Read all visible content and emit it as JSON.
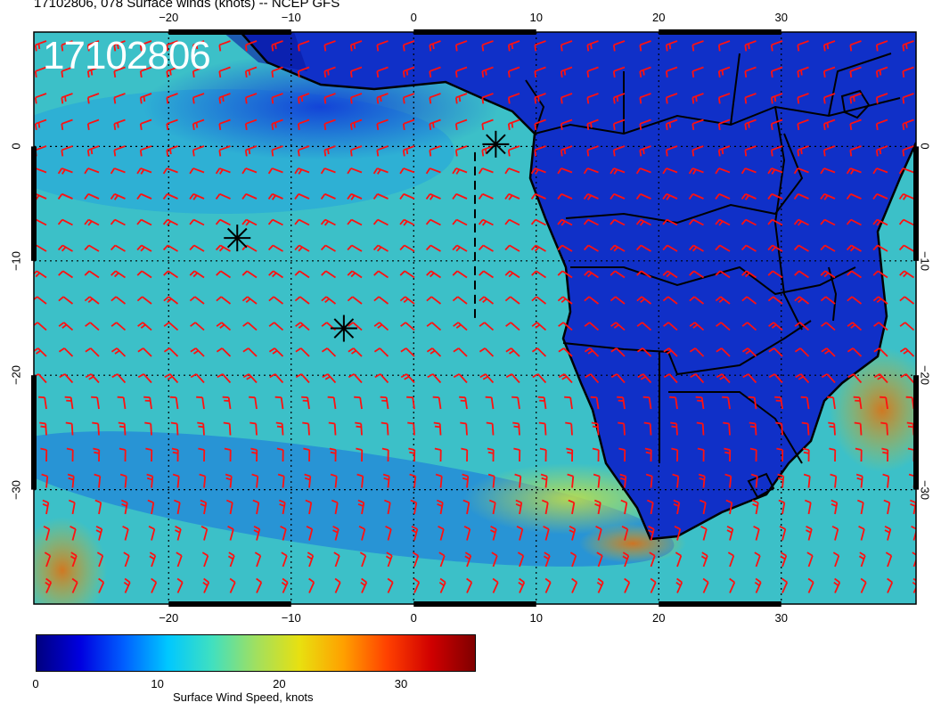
{
  "title": "17102806, 078 Surface winds (knots) -- NCEP GFS",
  "stamp": "17102806",
  "map": {
    "lon_range": [
      -31,
      41
    ],
    "lat_range": [
      10,
      -40
    ],
    "grid_lons": [
      -20,
      -10,
      0,
      10,
      20,
      30
    ],
    "grid_lats": [
      0,
      -10,
      -20,
      -30
    ],
    "lon_labels_top": [
      "−20",
      "−10",
      "0",
      "10",
      "20",
      "30"
    ],
    "lon_labels_bottom": [
      "−20",
      "−10",
      "0",
      "10",
      "20",
      "30"
    ],
    "lat_labels_left": [
      "0",
      "−10",
      "−20",
      "−30"
    ],
    "lat_labels_right": [
      "0",
      "−10",
      "−20",
      "−30"
    ],
    "ocean_color": "#3cc0c8",
    "land_color": "#1030c8",
    "barb_color": "#ff1010",
    "markers": [
      {
        "name": "star-marker",
        "lon": 6.7,
        "lat": 0.2
      },
      {
        "name": "star-marker",
        "lon": -14.4,
        "lat": -8.0
      },
      {
        "name": "star-marker",
        "lon": -5.7,
        "lat": -15.9
      }
    ],
    "track": [
      [
        5.0,
        -0.5
      ],
      [
        5.0,
        -15.0
      ]
    ]
  },
  "colorbar": {
    "ticks": [
      "0",
      "10",
      "20",
      "30"
    ],
    "tick_values": [
      0,
      10,
      20,
      30
    ],
    "max": 36,
    "label": "Surface Wind Speed, knots"
  }
}
